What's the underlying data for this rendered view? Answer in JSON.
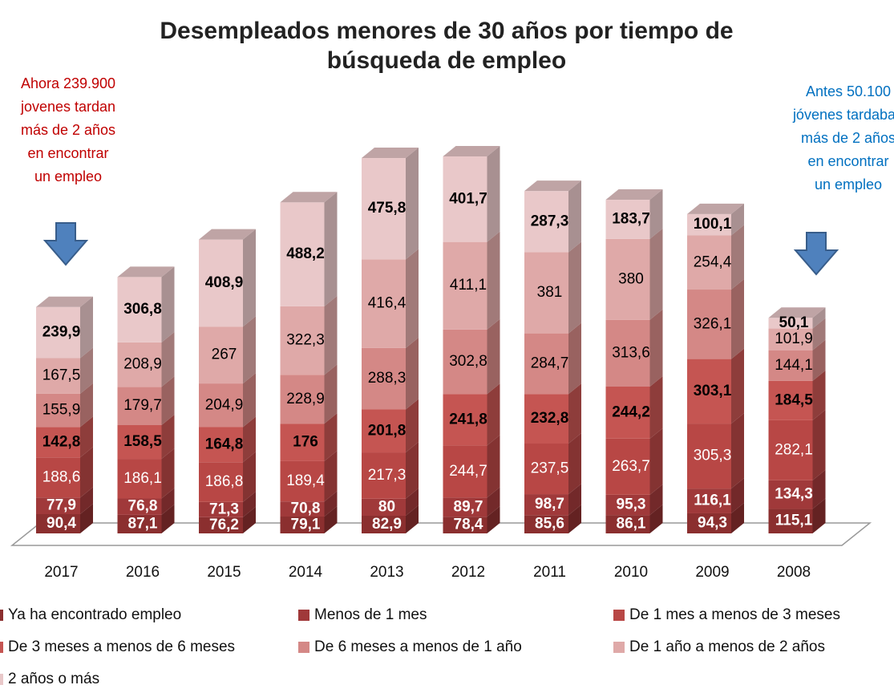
{
  "chart_data": {
    "type": "stacked-bar-3d",
    "title": [
      "Desempleados menores de 30 años por tiempo de",
      "búsqueda de empleo"
    ],
    "annotations": [
      {
        "lines": [
          "Ahora 239.900",
          "jovenes tardan",
          "más de  2 años",
          "en encontrar",
          "un empleo"
        ],
        "color": "#c00000"
      },
      {
        "lines": [
          "Antes 50.100",
          "jóvenes  tardaban",
          "más de 2 años",
          "en encontrar",
          "un empleo"
        ],
        "color": "#0070c0"
      }
    ],
    "categories": [
      "2017",
      "2016",
      "2015",
      "2014",
      "2013",
      "2012",
      "2011",
      "2010",
      "2009",
      "2008"
    ],
    "series": [
      {
        "name": "Ya ha encontrado empleo",
        "color": "#8b2f2f",
        "values": [
          90.4,
          87.1,
          76.2,
          79.1,
          82.9,
          78.4,
          85.6,
          86.1,
          94.3,
          115.1
        ],
        "value_labels": [
          "90,4",
          "87,1",
          "76,2",
          "79,1",
          "82,9",
          "78,4",
          "85,6",
          "86,1",
          "94,3",
          "115,1"
        ]
      },
      {
        "name": "Menos de 1 mes",
        "color": "#a0393a",
        "values": [
          77.9,
          76.8,
          71.3,
          70.8,
          80,
          89.7,
          98.7,
          95.3,
          116.1,
          134.3
        ],
        "value_labels": [
          "77,9",
          "76,8",
          "71,3",
          "70,8",
          "80",
          "89,7",
          "98,7",
          "95,3",
          "116,1",
          "134,3"
        ]
      },
      {
        "name": "De 1 mes a menos de 3 meses",
        "color": "#b84745",
        "values": [
          188.6,
          186.1,
          186.8,
          189.4,
          217.3,
          244.7,
          237.5,
          263.7,
          305.3,
          282.1
        ],
        "value_labels": [
          "188,6",
          "186,1",
          "186,8",
          "189,4",
          "217,3",
          "244,7",
          "237,5",
          "263,7",
          "305,3",
          "282,1"
        ]
      },
      {
        "name": "De 3 meses a menos de 6 meses",
        "color": "#c55552",
        "values": [
          142.8,
          158.5,
          164.8,
          176,
          201.8,
          241.8,
          232.8,
          244.2,
          303.1,
          184.5
        ],
        "value_labels": [
          "142,8",
          "158,5",
          "164,8",
          "176",
          "201,8",
          "241,8",
          "232,8",
          "244,2",
          "303,1",
          "184,5"
        ]
      },
      {
        "name": "De 6 meses a menos de 1 año",
        "color": "#d48886",
        "values": [
          155.9,
          179.7,
          204.9,
          228.9,
          288.3,
          302.8,
          284.7,
          313.6,
          326.1,
          144.1
        ],
        "value_labels": [
          "155,9",
          "179,7",
          "204,9",
          "228,9",
          "288,3",
          "302,8",
          "284,7",
          "313,6",
          "326,1",
          "144,1"
        ]
      },
      {
        "name": "De 1 año a menos de 2 años",
        "color": "#dfa9a8",
        "values": [
          167.5,
          208.9,
          267,
          322.3,
          416.4,
          411.1,
          381,
          380,
          254.4,
          101.9
        ],
        "value_labels": [
          "167,5",
          "208,9",
          "267",
          "322,3",
          "416,4",
          "411,1",
          "381",
          "380",
          "254,4",
          "101,9"
        ]
      },
      {
        "name": "2 años o más",
        "color": "#e9c8c9",
        "values": [
          239.9,
          306.8,
          408.9,
          488.2,
          475.8,
          401.7,
          287.3,
          183.7,
          100.1,
          50.1
        ],
        "value_labels": [
          "239,9",
          "306,8",
          "408,9",
          "488,2",
          "475,8",
          "401,7",
          "287,3",
          "183,7",
          "100,1",
          "50,1"
        ]
      }
    ]
  }
}
